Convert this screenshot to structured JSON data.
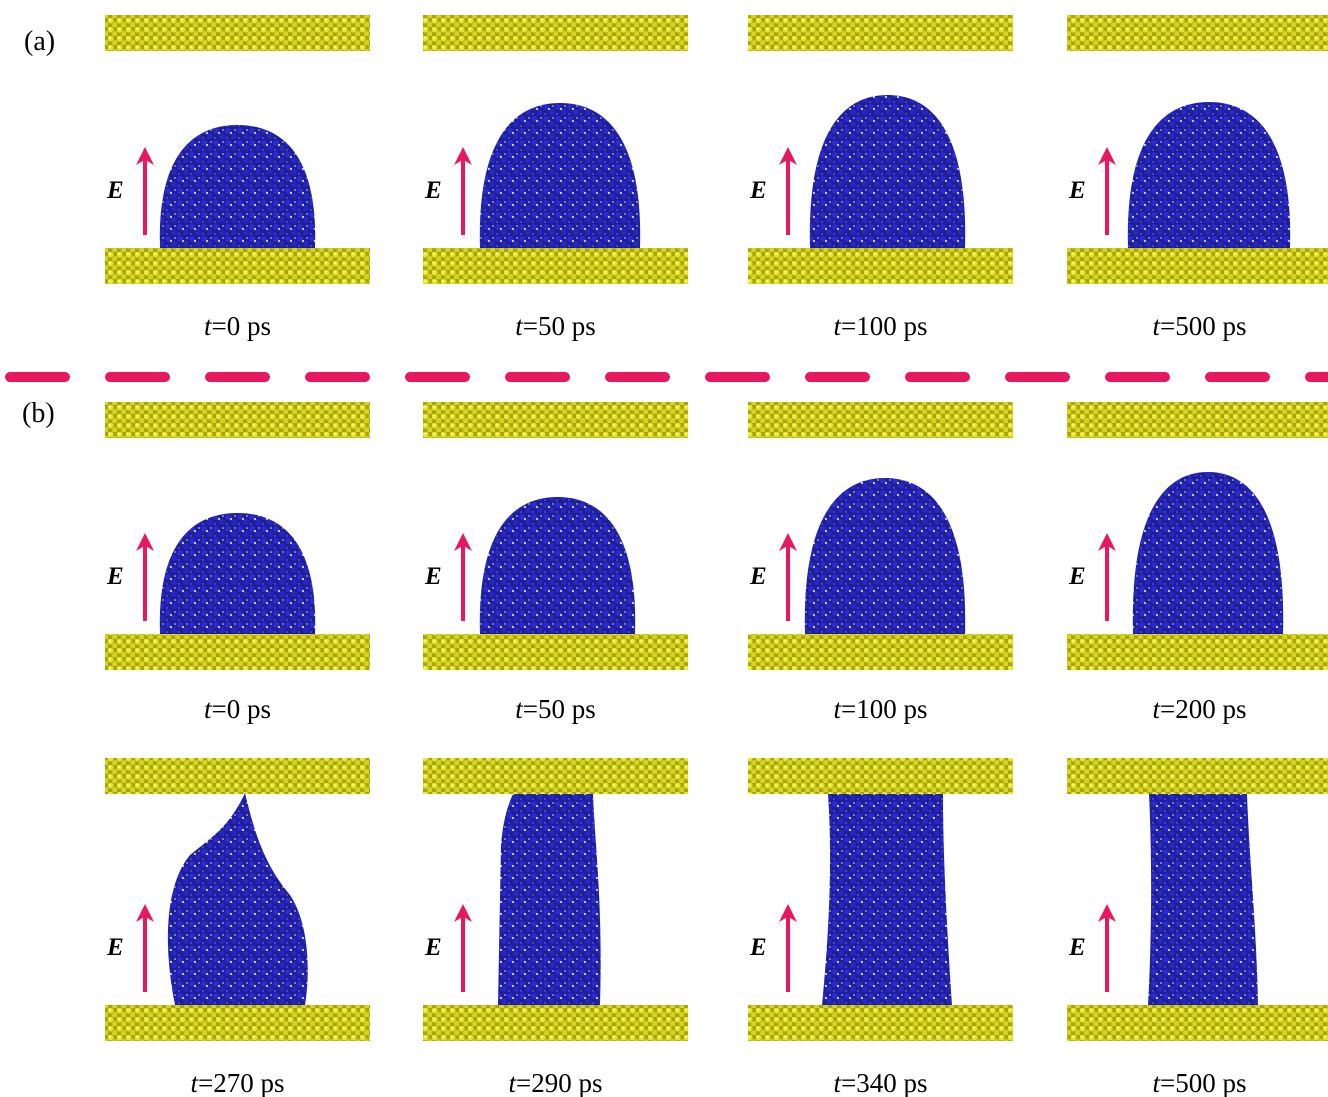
{
  "field_label": "E",
  "time_symbol": "t",
  "panel_a": {
    "label": "(a)",
    "frames": [
      "=0 ps",
      "=50 ps",
      "=100 ps",
      "=500 ps"
    ]
  },
  "panel_b": {
    "label": "(b)",
    "frames": [
      "=0 ps",
      "=50 ps",
      "=100 ps",
      "=200 ps",
      "=270 ps",
      "=290 ps",
      "=340 ps",
      "=500 ps"
    ]
  }
}
